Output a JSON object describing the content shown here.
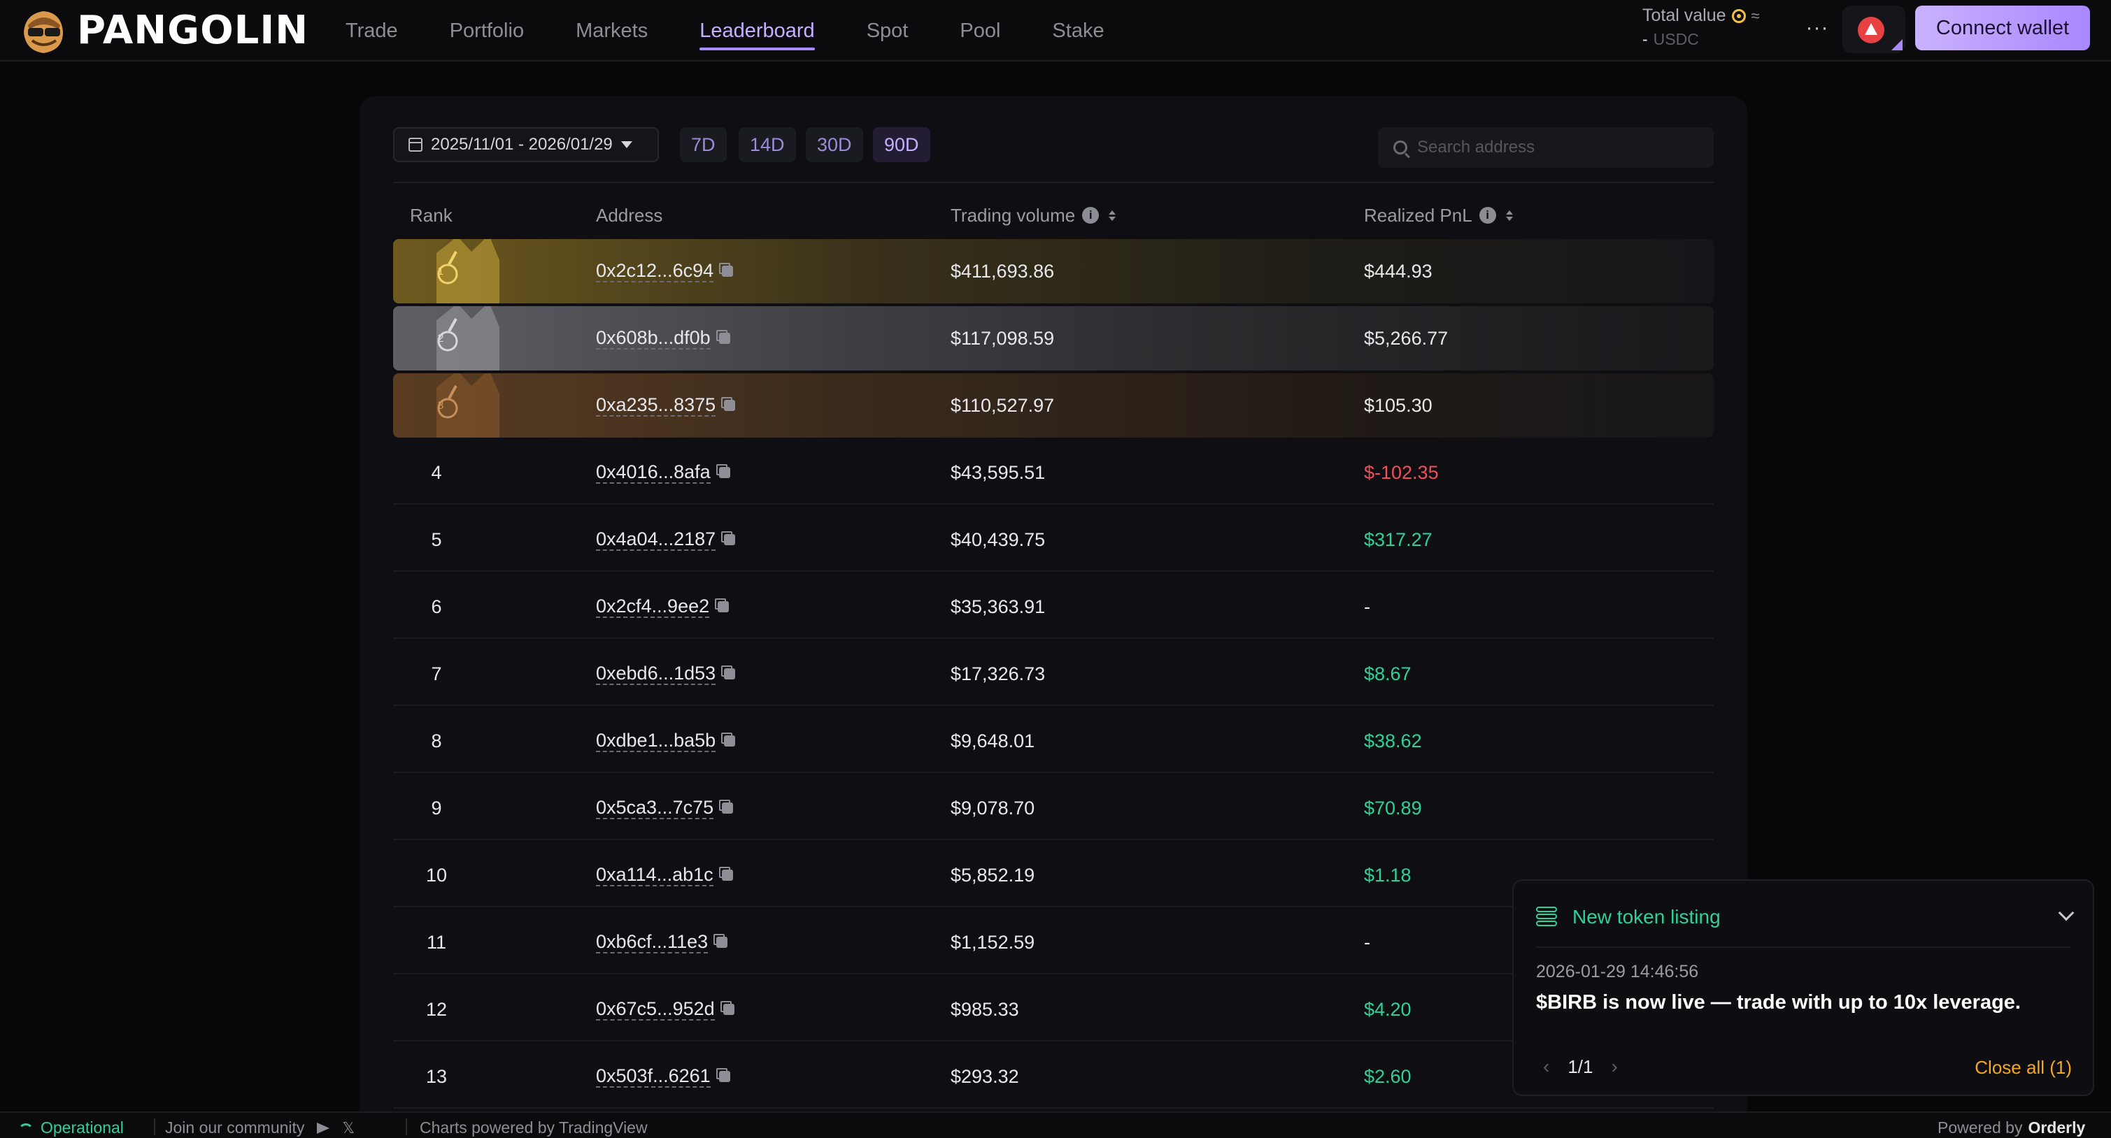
{
  "header": {
    "brand": "PANGOLIN",
    "nav": [
      "Trade",
      "Portfolio",
      "Markets",
      "Leaderboard",
      "Spot",
      "Pool",
      "Stake"
    ],
    "active_nav": "Leaderboard",
    "total_value_label": "Total value",
    "total_value_approx": "≈",
    "total_value_amount": "-",
    "total_value_unit": "USDC",
    "more_label": "···",
    "connect_label": "Connect wallet",
    "accent": "#a98aff"
  },
  "filters": {
    "date_range": "2025/11/01 - 2026/01/29",
    "periods": [
      "7D",
      "14D",
      "30D",
      "90D"
    ],
    "active_period": "90D",
    "search_placeholder": "Search address"
  },
  "table": {
    "columns": {
      "rank": "Rank",
      "address": "Address",
      "volume": "Trading volume",
      "pnl": "Realized PnL"
    },
    "rows": [
      {
        "rank": "1",
        "address": "0x2c12...6c94",
        "volume": "$411,693.86",
        "pnl": "$444.93",
        "tier": "gold",
        "pnl_color": "neutral"
      },
      {
        "rank": "2",
        "address": "0x608b...df0b",
        "volume": "$117,098.59",
        "pnl": "$5,266.77",
        "tier": "silver",
        "pnl_color": "neutral"
      },
      {
        "rank": "3",
        "address": "0xa235...8375",
        "volume": "$110,527.97",
        "pnl": "$105.30",
        "tier": "bronze",
        "pnl_color": "neutral"
      },
      {
        "rank": "4",
        "address": "0x4016...8afa",
        "volume": "$43,595.51",
        "pnl": "$-102.35",
        "tier": "",
        "pnl_color": "neg"
      },
      {
        "rank": "5",
        "address": "0x4a04...2187",
        "volume": "$40,439.75",
        "pnl": "$317.27",
        "tier": "",
        "pnl_color": "pos"
      },
      {
        "rank": "6",
        "address": "0x2cf4...9ee2",
        "volume": "$35,363.91",
        "pnl": "-",
        "tier": "",
        "pnl_color": "neutral"
      },
      {
        "rank": "7",
        "address": "0xebd6...1d53",
        "volume": "$17,326.73",
        "pnl": "$8.67",
        "tier": "",
        "pnl_color": "pos"
      },
      {
        "rank": "8",
        "address": "0xdbe1...ba5b",
        "volume": "$9,648.01",
        "pnl": "$38.62",
        "tier": "",
        "pnl_color": "pos"
      },
      {
        "rank": "9",
        "address": "0x5ca3...7c75",
        "volume": "$9,078.70",
        "pnl": "$70.89",
        "tier": "",
        "pnl_color": "pos"
      },
      {
        "rank": "10",
        "address": "0xa114...ab1c",
        "volume": "$5,852.19",
        "pnl": "$1.18",
        "tier": "",
        "pnl_color": "pos"
      },
      {
        "rank": "11",
        "address": "0xb6cf...11e3",
        "volume": "$1,152.59",
        "pnl": "-",
        "tier": "",
        "pnl_color": "neutral"
      },
      {
        "rank": "12",
        "address": "0x67c5...952d",
        "volume": "$985.33",
        "pnl": "$4.20",
        "tier": "",
        "pnl_color": "pos"
      },
      {
        "rank": "13",
        "address": "0x503f...6261",
        "volume": "$293.32",
        "pnl": "$2.60",
        "tier": "",
        "pnl_color": "pos"
      }
    ],
    "colors": {
      "pos": "#2fd199",
      "neg": "#ef4f58"
    }
  },
  "toast": {
    "title": "New token listing",
    "time": "2026-01-29 14:46:56",
    "message": "$BIRB is now live — trade with up to 10x leverage.",
    "pager": "1/1",
    "close_all": "Close all (1)"
  },
  "footer": {
    "status": "Operational",
    "community": "Join our community",
    "charts": "Charts powered by TradingView",
    "powered_by": "Powered by",
    "powered_brand": "Orderly"
  }
}
